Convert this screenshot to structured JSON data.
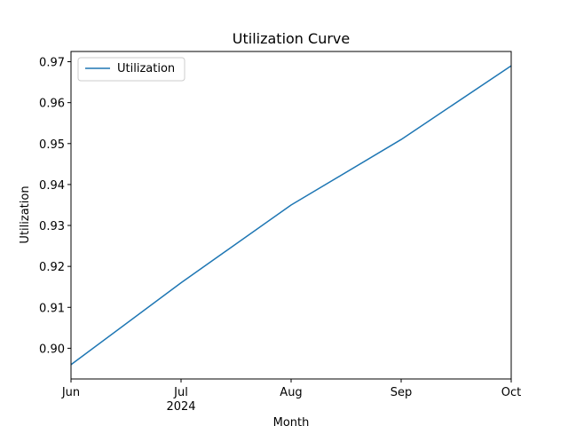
{
  "chart_data": {
    "type": "line",
    "title": "Utilization Curve",
    "xlabel": "Month",
    "ylabel": "Utilization",
    "x": [
      "2024-06",
      "2024-07",
      "2024-08",
      "2024-09",
      "2024-10"
    ],
    "x_tick_labels": [
      "Jun",
      "Jul",
      "Aug",
      "Sep",
      "Oct"
    ],
    "x_year_label": "2024",
    "series": [
      {
        "name": "Utilization",
        "color": "#1f77b4",
        "values": [
          0.896,
          0.916,
          0.935,
          0.951,
          0.969
        ]
      }
    ],
    "ylim": [
      0.8925,
      0.9725
    ],
    "y_ticks": [
      0.9,
      0.91,
      0.92,
      0.93,
      0.94,
      0.95,
      0.96,
      0.97
    ],
    "y_tick_labels": [
      "0.90",
      "0.91",
      "0.92",
      "0.93",
      "0.94",
      "0.95",
      "0.96",
      "0.97"
    ],
    "grid": false,
    "legend_position": "top-left"
  }
}
